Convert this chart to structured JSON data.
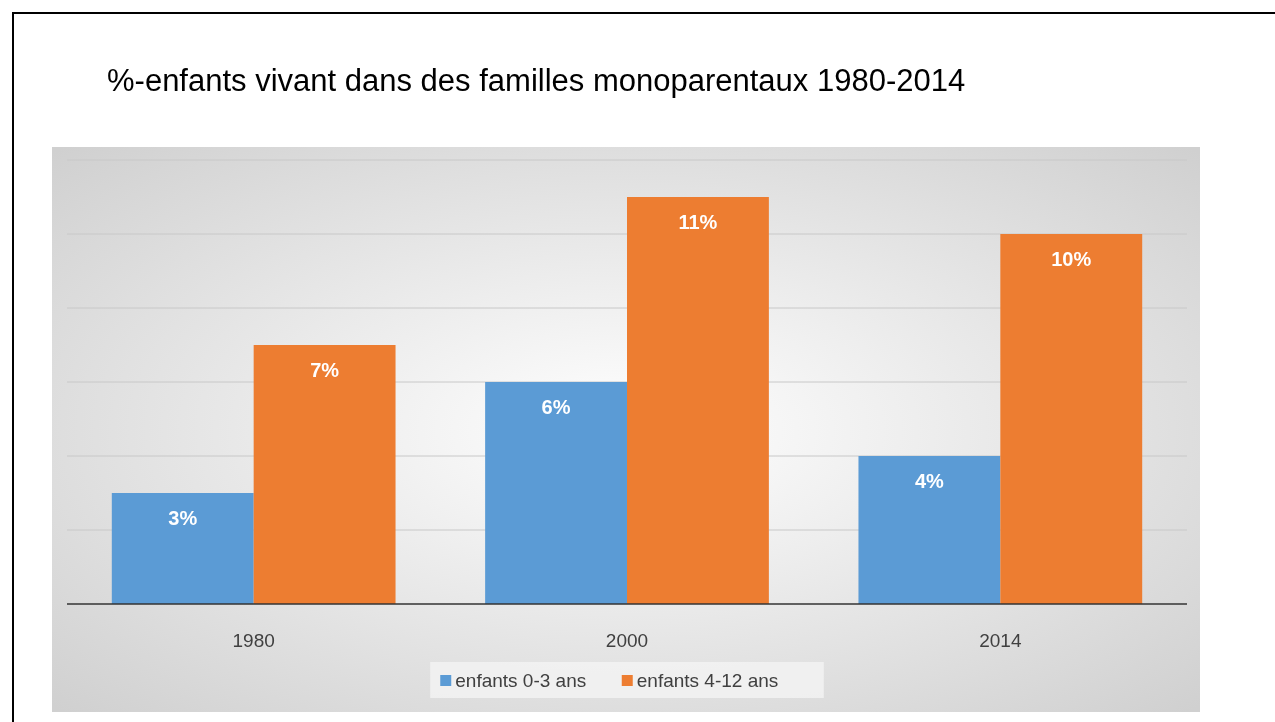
{
  "chart_data": {
    "type": "bar",
    "title": "%-enfants vivant dans des familles monoparentaux 1980-2014",
    "categories": [
      "1980",
      "2000",
      "2014"
    ],
    "series": [
      {
        "name": "enfants 0-3 ans",
        "color": "#5b9bd5",
        "values": [
          3,
          6,
          4
        ],
        "value_labels": [
          "3%",
          "6%",
          "4%"
        ]
      },
      {
        "name": "enfants 4-12 ans",
        "color": "#ed7d31",
        "values": [
          7,
          11,
          10
        ],
        "value_labels": [
          "7%",
          "11%",
          "10%"
        ]
      }
    ],
    "ylim": [
      0,
      12
    ],
    "yticks": [
      {
        "value": 0,
        "label": null
      },
      {
        "value": 2,
        "label": null
      },
      {
        "value": 4,
        "label": null
      },
      {
        "value": 6,
        "label": null
      },
      {
        "value": 8,
        "label": null
      },
      {
        "value": 10,
        "label": null
      },
      {
        "value": 12,
        "label": null
      }
    ],
    "tick_labels": "x",
    "grid": "y",
    "legend": "bottom"
  }
}
